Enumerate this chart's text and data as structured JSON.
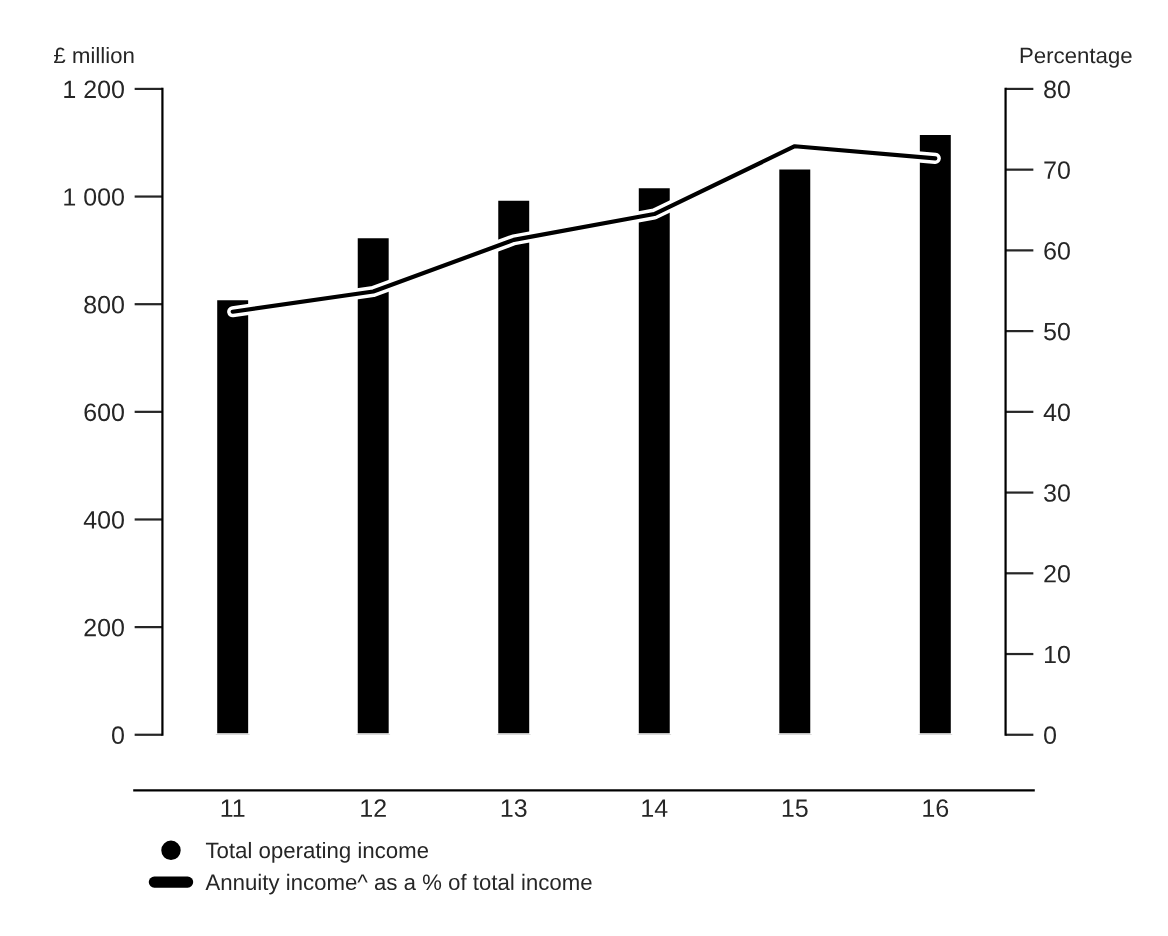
{
  "chart_data": {
    "type": "bar",
    "ylabel": "£ million",
    "y2label": "Percentage",
    "categories": [
      "11",
      "12",
      "13",
      "14",
      "15",
      "16"
    ],
    "series": [
      {
        "name": "Total operating income",
        "color": "#000000",
        "values": [
          810,
          925,
          995,
          1018,
          1053,
          1117
        ]
      },
      {
        "name": "Annuity income^ as a % of total income",
        "type": "line",
        "axis": "y2",
        "color": "#000000",
        "values": [
          52.4,
          54.9,
          61.3,
          64.5,
          72.9,
          71.4
        ]
      }
    ],
    "ylim": [
      0,
      1200
    ],
    "yticks": [
      0,
      200,
      400,
      600,
      800,
      {
        "value": 1000,
        "label": "1 000"
      },
      {
        "value": 1200,
        "label": "1 200"
      }
    ],
    "y2lim": [
      0,
      80
    ],
    "y2ticks": [
      0,
      10,
      20,
      30,
      40,
      50,
      60,
      70,
      80
    ],
    "grid": false,
    "legend": "bottom left",
    "marker": "none",
    "line_style": "solid"
  }
}
